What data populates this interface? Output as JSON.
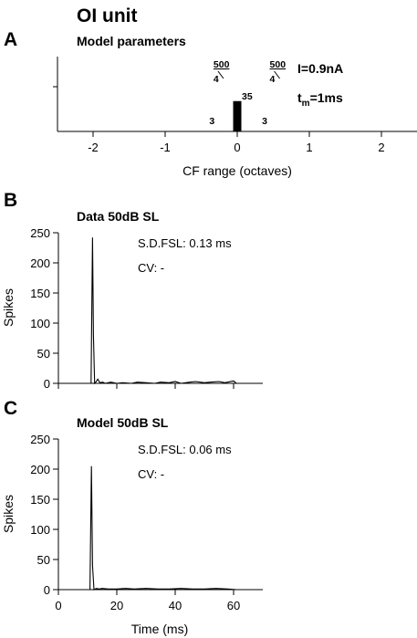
{
  "figure": {
    "title": "OI unit"
  },
  "chart_data": [
    {
      "panel": "A",
      "type": "bar",
      "title": "Model parameters",
      "xlabel": "CF range (octaves)",
      "ylabel": "",
      "xlim": [
        -2.5,
        2.5
      ],
      "xticks": [
        "-2",
        "-1",
        "0",
        "1",
        "2"
      ],
      "bars": [
        {
          "x": 0,
          "value": 35,
          "label": "35"
        }
      ],
      "annotations": [
        {
          "x": -0.35,
          "label": "3"
        },
        {
          "x": 0.38,
          "label": "3"
        }
      ],
      "fraction_labels": [
        {
          "x": -0.33,
          "num": "500",
          "den": "4"
        },
        {
          "x": 0.45,
          "num": "500",
          "den": "4"
        }
      ],
      "params": {
        "current": "I=0.9nA",
        "tm_prefix": "t",
        "tm_sub": "m",
        "tm_value": "=1ms"
      }
    },
    {
      "panel": "B",
      "type": "line",
      "title": "Data 50dB SL",
      "xlabel": "",
      "ylabel": "Spikes",
      "xlim": [
        0,
        70
      ],
      "ylim": [
        0,
        250
      ],
      "yticks": [
        "0",
        "50",
        "100",
        "150",
        "200",
        "250"
      ],
      "stats": [
        "S.D.FSL: 0.13 ms",
        "CV:  -"
      ],
      "series": [
        {
          "x": [
            11.2,
            11.7,
            12.0,
            12.4,
            12.8,
            13.5,
            14.2,
            15.2,
            16.0,
            18,
            20,
            22,
            25,
            27,
            30,
            33,
            35,
            38,
            40,
            42,
            45,
            47,
            50,
            52,
            55,
            57,
            60,
            61
          ],
          "values": [
            0,
            242,
            80,
            0,
            2,
            7,
            1,
            2,
            0,
            2,
            0,
            1,
            0,
            2,
            1,
            0,
            2,
            1,
            3,
            0,
            2,
            3,
            1,
            2,
            3,
            1,
            4,
            0
          ]
        }
      ]
    },
    {
      "panel": "C",
      "type": "line",
      "title": "Model 50dB SL",
      "xlabel": "Time (ms)",
      "ylabel": "Spikes",
      "xlim": [
        0,
        70
      ],
      "ylim": [
        0,
        250
      ],
      "xticks": [
        "0",
        "20",
        "40",
        "60"
      ],
      "yticks": [
        "0",
        "50",
        "100",
        "150",
        "200",
        "250"
      ],
      "stats": [
        "S.D.FSL: 0.06 ms",
        "CV:  -"
      ],
      "series": [
        {
          "x": [
            10.8,
            11.3,
            11.7,
            12.2,
            13.0,
            14.0,
            15.0,
            17,
            20,
            23,
            26,
            30,
            34,
            38,
            42,
            46,
            50,
            54,
            58,
            61
          ],
          "values": [
            0,
            205,
            40,
            0,
            2,
            1,
            2,
            1,
            1,
            2,
            1,
            2,
            1,
            1,
            2,
            1,
            1,
            2,
            1,
            0
          ]
        }
      ]
    }
  ]
}
